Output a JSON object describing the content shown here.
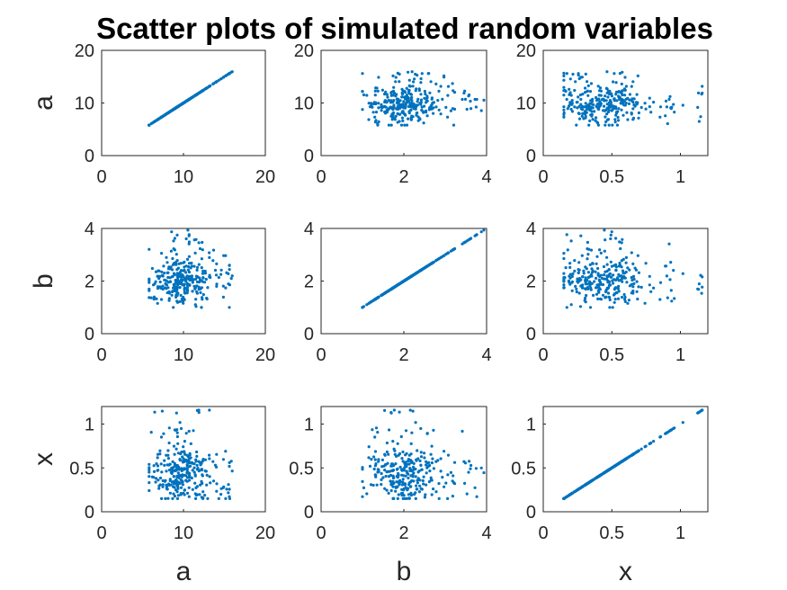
{
  "title": "Scatter plots of simulated random variables",
  "chart_data": {
    "type": "scatter",
    "title": "Scatter plots of simulated random variables",
    "layout": "3x3 scatter matrix",
    "marker_color": "#0072BD",
    "variables": [
      {
        "name": "a",
        "lim": [
          0,
          20
        ],
        "ticks": [
          0,
          10,
          20
        ],
        "tick_labels": [
          "0",
          "10",
          "20"
        ],
        "mean": 9.8,
        "sd": 1.8,
        "min": 5.8,
        "max": 16.2
      },
      {
        "name": "b",
        "lim": [
          0,
          4
        ],
        "ticks": [
          0,
          2,
          4
        ],
        "tick_labels": [
          "0",
          "2",
          "4"
        ],
        "mean": 2.0,
        "sd": 0.45,
        "min": 1.0,
        "max": 3.95
      },
      {
        "name": "x",
        "lim": [
          0,
          1.2
        ],
        "ticks": [
          0,
          0.5,
          1
        ],
        "tick_labels": [
          "0",
          "0.5",
          "1"
        ],
        "mean": 0.43,
        "sd": 0.17,
        "min": 0.15,
        "max": 1.16
      }
    ],
    "n_points": 300,
    "grid": false,
    "legend": "none"
  }
}
